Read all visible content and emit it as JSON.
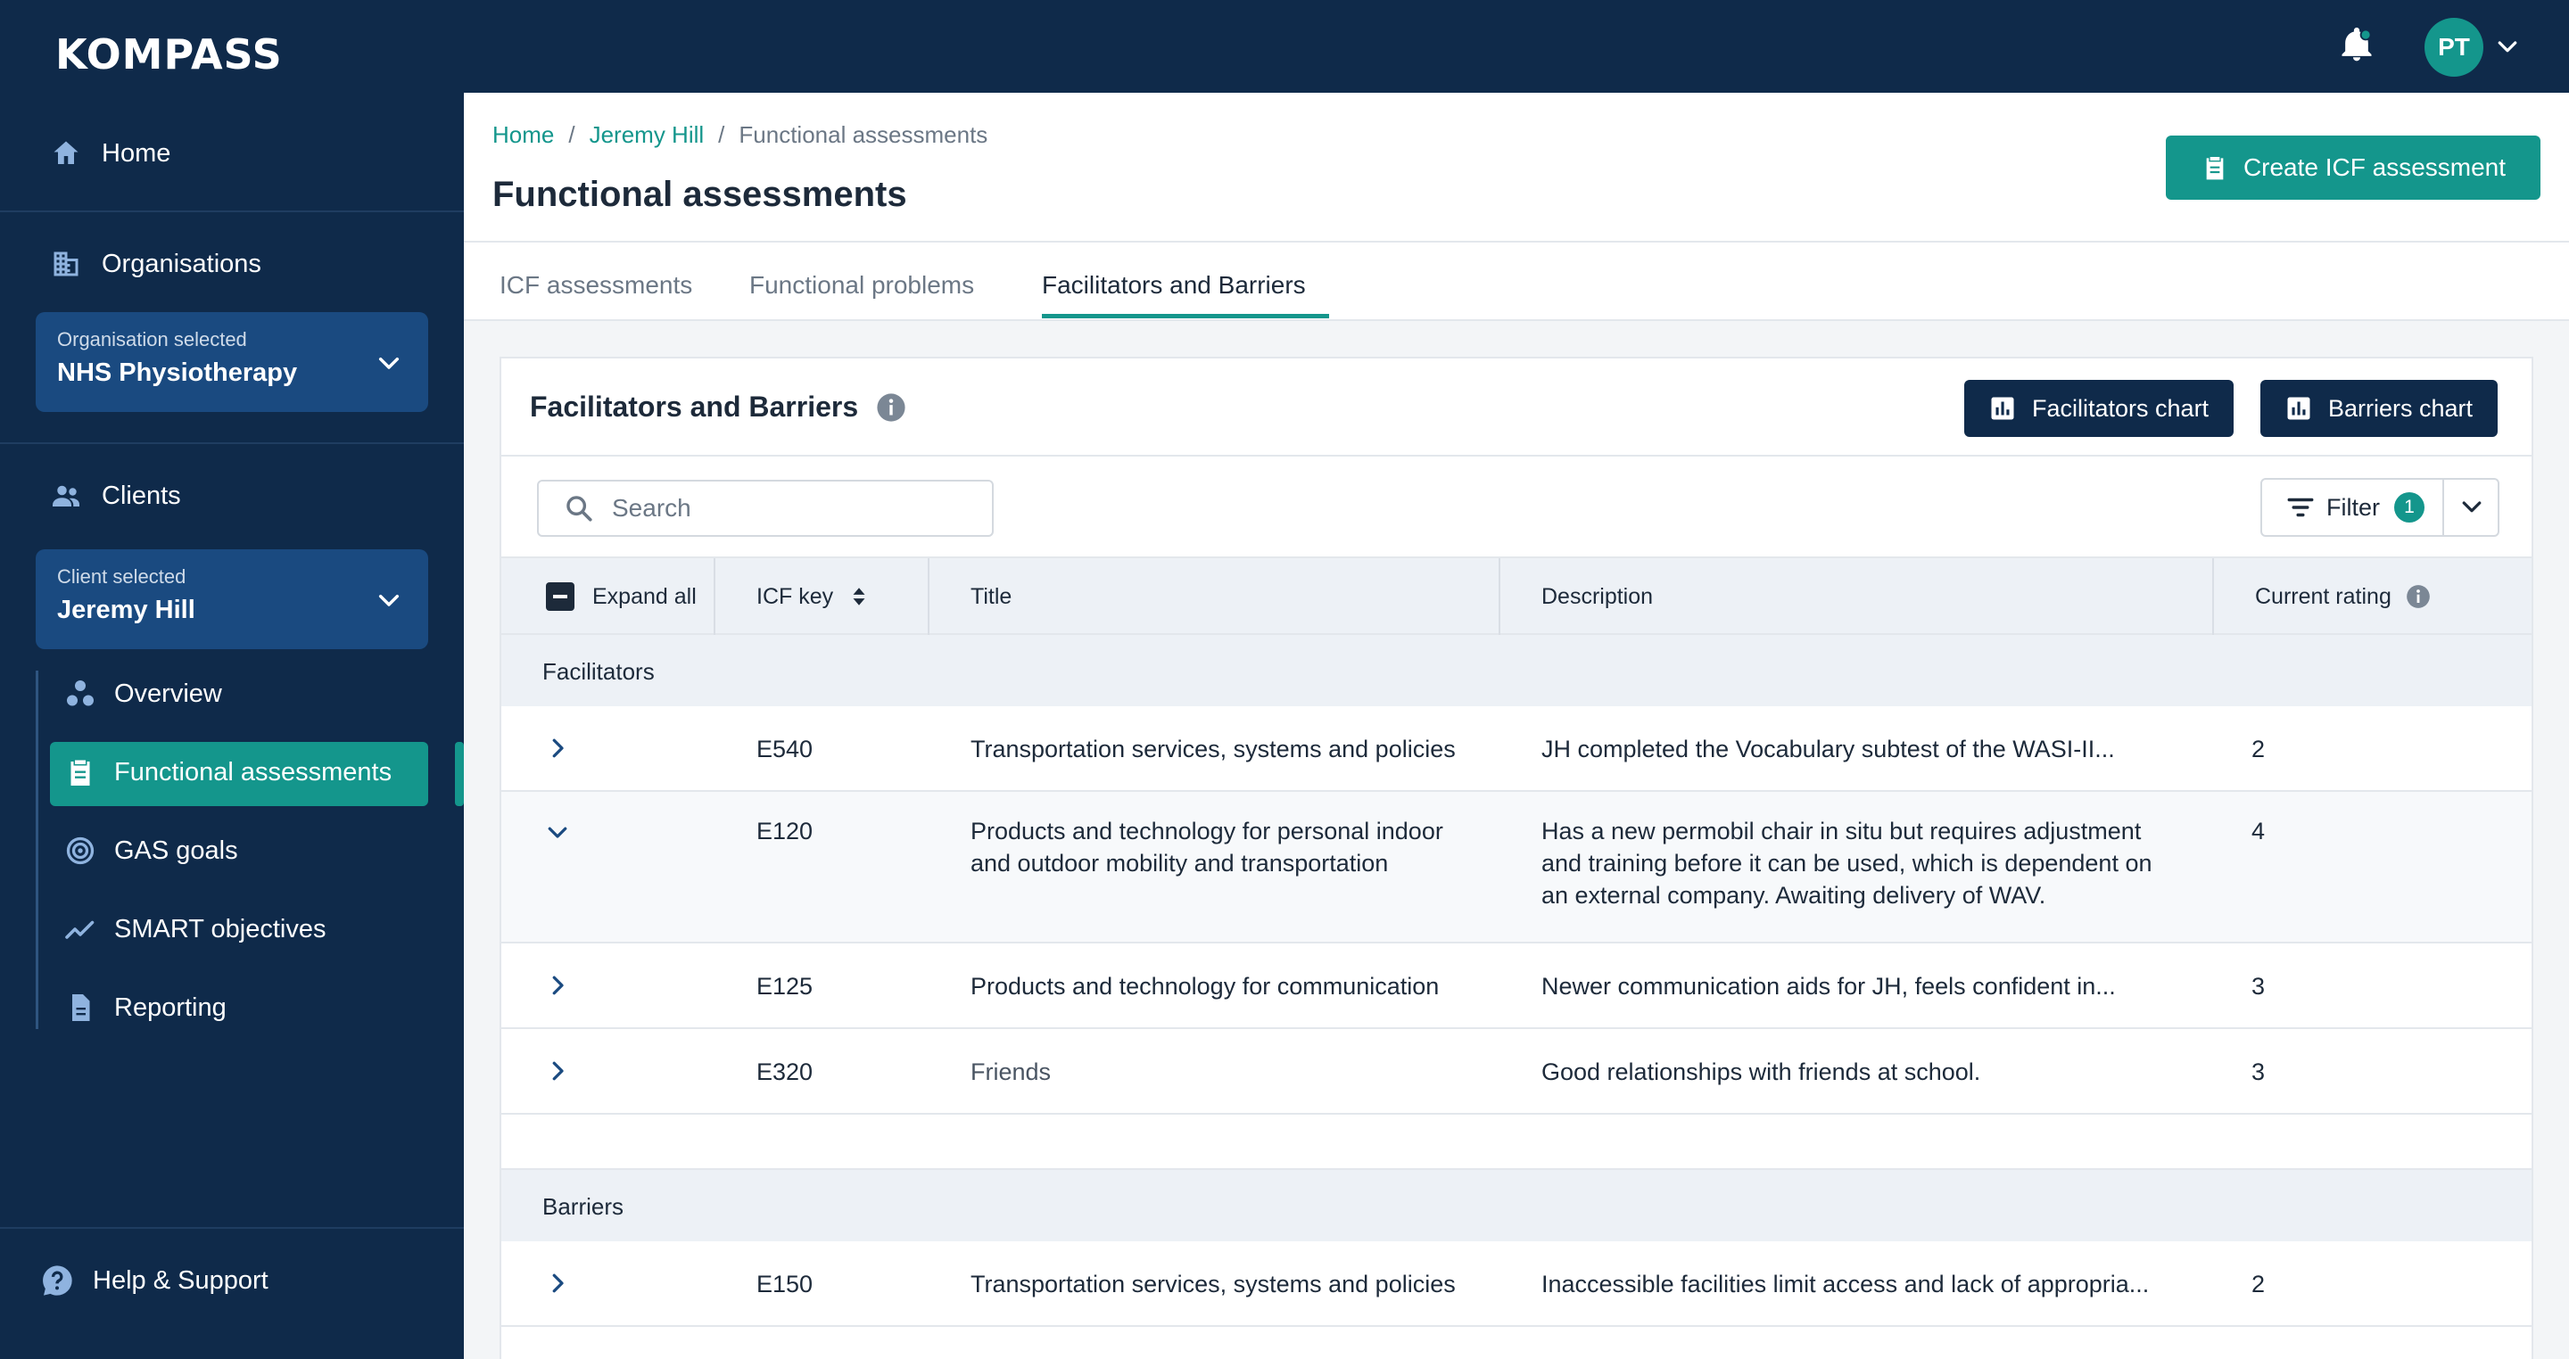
{
  "app": {
    "logo": "KOMPASS",
    "user_initials": "PT"
  },
  "sidebar": {
    "home": "Home",
    "organisations": "Organisations",
    "organisation_selector": {
      "label": "Organisation selected",
      "value": "NHS Physiotherapy"
    },
    "clients": "Clients",
    "client_selector": {
      "label": "Client selected",
      "value": "Jeremy Hill"
    },
    "subnav": [
      "Overview",
      "Functional assessments",
      "GAS goals",
      "SMART objectives",
      "Reporting"
    ],
    "help": "Help & Support"
  },
  "header": {
    "breadcrumb": [
      "Home",
      "Jeremy Hill",
      "Functional assessments"
    ],
    "title": "Functional assessments",
    "create_button": "Create ICF assessment"
  },
  "tabs": [
    "ICF assessments",
    "Functional problems",
    "Facilitators and Barriers"
  ],
  "active_tab": "Facilitators and Barriers",
  "card": {
    "title": "Facilitators and Barriers",
    "facilitators_chart_button": "Facilitators chart",
    "barriers_chart_button": "Barriers chart",
    "search_placeholder": "Search",
    "filter_label": "Filter",
    "filter_count": "1"
  },
  "table": {
    "columns": {
      "expand_all": "Expand all",
      "icf_key": "ICF key",
      "title": "Title",
      "description": "Description",
      "rating": "Current rating"
    },
    "groups": [
      {
        "name": "Facilitators",
        "rows": [
          {
            "key": "E540",
            "title": "Transportation services, systems and policies",
            "description": "JH completed the Vocabulary subtest of the WASI-II...",
            "rating": "2",
            "expanded": false
          },
          {
            "key": "E120",
            "title_lines": [
              "Products and technology for personal indoor",
              "and outdoor mobility and transportation"
            ],
            "description_lines": [
              "Has a new permobil chair in situ but requires adjustment",
              "and training before it can be used, which is dependent on",
              "an external company. Awaiting delivery of WAV."
            ],
            "rating": "4",
            "expanded": true
          },
          {
            "key": "E125",
            "title": "Products and technology for communication",
            "description": "Newer communication aids for JH, feels confident in...",
            "rating": "3",
            "expanded": false
          },
          {
            "key": "E320",
            "title": "Friends",
            "description": "Good relationships with friends at school.",
            "rating": "3",
            "expanded": false
          }
        ]
      },
      {
        "name": "Barriers",
        "rows": [
          {
            "key": "E150",
            "title": "Transportation services, systems and policies",
            "description": "Inaccessible facilities limit access and lack of appropria...",
            "rating": "2",
            "expanded": false
          }
        ]
      }
    ]
  },
  "colors": {
    "navy": "#0f2a4a",
    "teal": "#14968c",
    "selector_blue": "#1a4a80"
  }
}
